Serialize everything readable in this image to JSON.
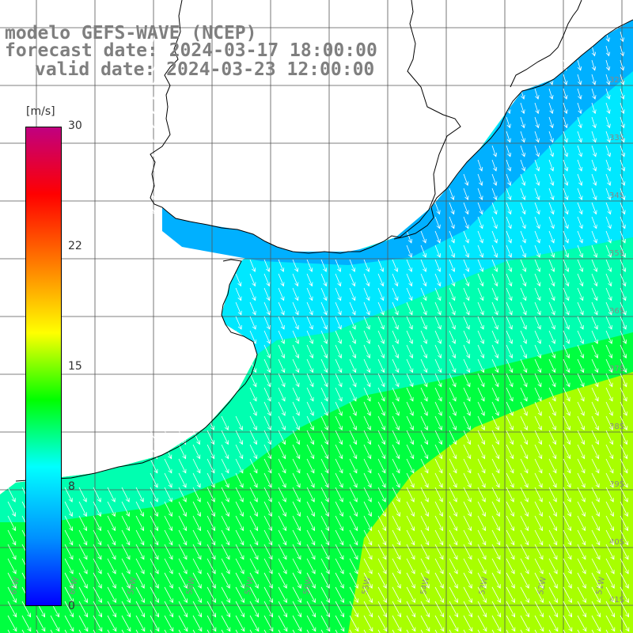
{
  "title": {
    "line1": "modelo GEFS-WAVE (NCEP)",
    "line2": "forecast date: 2024-03-17 18:00:00",
    "line3": "valid date: 2024-03-23 12:00:00"
  },
  "colorbar": {
    "units": "[m/s]",
    "ticks": [
      "30",
      "22",
      "15",
      "8",
      "0"
    ],
    "stops": [
      "#0000ff",
      "#0090ff",
      "#00ffff",
      "#00ff00",
      "#ffff00",
      "#ff8000",
      "#ff0000",
      "#c00080"
    ]
  },
  "map": {
    "lat_labels": [
      "32S",
      "33S",
      "34S",
      "35S",
      "36S",
      "37S",
      "38S",
      "39S",
      "40S",
      "41S"
    ],
    "lon_labels": [
      "61W",
      "60W",
      "59W",
      "58W",
      "57W",
      "56W",
      "55W",
      "54W",
      "53W",
      "52W",
      "51W"
    ],
    "ocean_colors": {
      "coastal": "#00b0ff",
      "shelf": "#00e8ff",
      "transition": "#00ffb0",
      "open": "#00ff40",
      "strong": "#a8ff00"
    },
    "wind_direction": "from north-northwest, arrows pointing south-southeast"
  }
}
